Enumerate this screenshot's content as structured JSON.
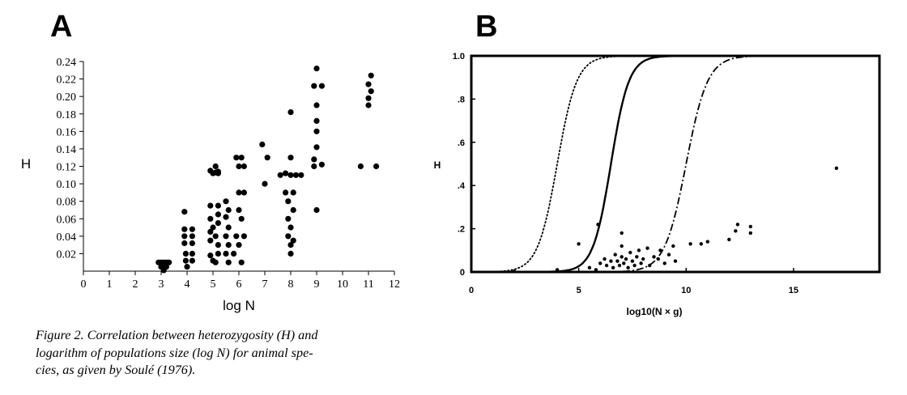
{
  "panel_labels": {
    "a": "A",
    "b": "B"
  },
  "caption": {
    "lines": [
      "Figure 2.  Correlation between heterozygosity (H) and",
      "logarithm of populations size (log N) for animal spe-",
      "cies, as given by Soulé (1976)."
    ]
  },
  "chart_data": [
    {
      "type": "scatter",
      "panel": "A",
      "title": "",
      "xlabel": "log N",
      "ylabel": "H",
      "xlim": [
        0,
        12
      ],
      "ylim": [
        0,
        0.24
      ],
      "xticks": [
        0,
        1,
        2,
        3,
        4,
        5,
        6,
        7,
        8,
        9,
        10,
        11,
        12
      ],
      "xtick_labels": [
        "0",
        "1",
        "2",
        "3",
        "4",
        "5",
        "6",
        "7",
        "8",
        "9",
        "10",
        "11",
        "12"
      ],
      "yticks": [
        0.02,
        0.04,
        0.06,
        0.08,
        0.1,
        0.12,
        0.14,
        0.16,
        0.18,
        0.2,
        0.22,
        0.24
      ],
      "ytick_labels": [
        "0.02",
        "0.04",
        "0.06",
        "0.08",
        "0.10",
        "0.12",
        "0.14",
        "0.16",
        "0.18",
        "0.20",
        "0.22",
        "0.24"
      ],
      "points": [
        [
          2.9,
          0.01
        ],
        [
          3.0,
          0.01
        ],
        [
          3.1,
          0.01
        ],
        [
          3.2,
          0.01
        ],
        [
          3.3,
          0.01
        ],
        [
          3.0,
          0.005
        ],
        [
          3.2,
          0.005
        ],
        [
          3.1,
          0.001
        ],
        [
          3.9,
          0.068
        ],
        [
          3.9,
          0.048
        ],
        [
          4.2,
          0.048
        ],
        [
          3.9,
          0.04
        ],
        [
          4.2,
          0.04
        ],
        [
          3.9,
          0.032
        ],
        [
          4.2,
          0.032
        ],
        [
          3.95,
          0.02
        ],
        [
          4.2,
          0.02
        ],
        [
          3.95,
          0.012
        ],
        [
          4.2,
          0.012
        ],
        [
          4.0,
          0.005
        ],
        [
          4.9,
          0.115
        ],
        [
          5.0,
          0.112
        ],
        [
          5.1,
          0.113
        ],
        [
          5.2,
          0.112
        ],
        [
          5.1,
          0.12
        ],
        [
          5.2,
          0.114
        ],
        [
          4.9,
          0.075
        ],
        [
          5.2,
          0.075
        ],
        [
          4.9,
          0.06
        ],
        [
          5.2,
          0.065
        ],
        [
          5.0,
          0.05
        ],
        [
          5.2,
          0.055
        ],
        [
          4.9,
          0.045
        ],
        [
          5.1,
          0.04
        ],
        [
          4.9,
          0.035
        ],
        [
          5.2,
          0.03
        ],
        [
          4.9,
          0.018
        ],
        [
          5.2,
          0.02
        ],
        [
          5.0,
          0.012
        ],
        [
          5.1,
          0.01
        ],
        [
          5.5,
          0.08
        ],
        [
          5.6,
          0.07
        ],
        [
          5.5,
          0.062
        ],
        [
          5.6,
          0.05
        ],
        [
          5.5,
          0.04
        ],
        [
          5.6,
          0.03
        ],
        [
          5.5,
          0.02
        ],
        [
          5.6,
          0.01
        ],
        [
          5.9,
          0.13
        ],
        [
          6.1,
          0.13
        ],
        [
          6.0,
          0.12
        ],
        [
          6.2,
          0.12
        ],
        [
          6.0,
          0.09
        ],
        [
          6.2,
          0.09
        ],
        [
          6.0,
          0.07
        ],
        [
          6.1,
          0.06
        ],
        [
          5.9,
          0.04
        ],
        [
          6.2,
          0.04
        ],
        [
          6.0,
          0.03
        ],
        [
          5.8,
          0.02
        ],
        [
          6.1,
          0.01
        ],
        [
          6.9,
          0.145
        ],
        [
          7.1,
          0.13
        ],
        [
          7.0,
          0.1
        ],
        [
          7.6,
          0.11
        ],
        [
          7.8,
          0.112
        ],
        [
          8.0,
          0.11
        ],
        [
          8.2,
          0.11
        ],
        [
          8.4,
          0.11
        ],
        [
          8.0,
          0.182
        ],
        [
          8.0,
          0.13
        ],
        [
          7.8,
          0.09
        ],
        [
          8.1,
          0.09
        ],
        [
          7.9,
          0.08
        ],
        [
          8.1,
          0.07
        ],
        [
          7.9,
          0.06
        ],
        [
          8.0,
          0.05
        ],
        [
          7.9,
          0.04
        ],
        [
          8.1,
          0.035
        ],
        [
          8.0,
          0.03
        ],
        [
          8.0,
          0.02
        ],
        [
          9.0,
          0.232
        ],
        [
          8.9,
          0.212
        ],
        [
          9.2,
          0.212
        ],
        [
          9.0,
          0.19
        ],
        [
          9.0,
          0.172
        ],
        [
          9.0,
          0.16
        ],
        [
          9.0,
          0.142
        ],
        [
          8.9,
          0.128
        ],
        [
          9.2,
          0.122
        ],
        [
          8.9,
          0.12
        ],
        [
          9.0,
          0.07
        ],
        [
          11.1,
          0.224
        ],
        [
          11.0,
          0.214
        ],
        [
          11.1,
          0.206
        ],
        [
          11.0,
          0.198
        ],
        [
          11.0,
          0.19
        ],
        [
          10.7,
          0.12
        ],
        [
          11.3,
          0.12
        ]
      ]
    },
    {
      "type": "line",
      "panel": "B",
      "title": "",
      "xlabel": "log10(N × g)",
      "ylabel": "H",
      "xlim": [
        0,
        19
      ],
      "ylim": [
        0,
        1.0
      ],
      "xticks": [
        0,
        5,
        10,
        15
      ],
      "xtick_labels": [
        "0",
        "5",
        "10",
        "15"
      ],
      "yticks": [
        0,
        0.2,
        0.4,
        0.6,
        0.8,
        1.0
      ],
      "ytick_labels": [
        "0",
        ".2",
        ".4",
        ".6",
        ".8",
        "1.0"
      ],
      "series": [
        {
          "name": "dotted curve",
          "style": "dotted",
          "midpoint": 4.0,
          "steepness": 2.2
        },
        {
          "name": "solid curve",
          "style": "solid",
          "midpoint": 6.5,
          "steepness": 2.4
        },
        {
          "name": "dash-dot curve",
          "style": "dashdot",
          "midpoint": 10.0,
          "steepness": 2.0
        }
      ],
      "points": [
        [
          2.0,
          0.003
        ],
        [
          4.0,
          0.01
        ],
        [
          5.0,
          0.13
        ],
        [
          5.9,
          0.22
        ],
        [
          4.5,
          0.005
        ],
        [
          5.5,
          0.02
        ],
        [
          5.8,
          0.01
        ],
        [
          6.0,
          0.04
        ],
        [
          6.2,
          0.06
        ],
        [
          6.3,
          0.03
        ],
        [
          6.5,
          0.05
        ],
        [
          6.6,
          0.02
        ],
        [
          6.7,
          0.08
        ],
        [
          6.8,
          0.05
        ],
        [
          6.9,
          0.03
        ],
        [
          7.0,
          0.12
        ],
        [
          7.0,
          0.07
        ],
        [
          7.0,
          0.18
        ],
        [
          7.1,
          0.04
        ],
        [
          7.2,
          0.06
        ],
        [
          7.3,
          0.02
        ],
        [
          7.4,
          0.09
        ],
        [
          7.5,
          0.05
        ],
        [
          7.6,
          0.03
        ],
        [
          7.7,
          0.07
        ],
        [
          7.8,
          0.1
        ],
        [
          7.9,
          0.04
        ],
        [
          8.0,
          0.06
        ],
        [
          8.2,
          0.11
        ],
        [
          8.3,
          0.03
        ],
        [
          8.5,
          0.07
        ],
        [
          8.7,
          0.06
        ],
        [
          8.8,
          0.1
        ],
        [
          9.0,
          0.04
        ],
        [
          9.2,
          0.08
        ],
        [
          9.4,
          0.12
        ],
        [
          9.5,
          0.05
        ],
        [
          10.2,
          0.13
        ],
        [
          10.7,
          0.13
        ],
        [
          11.0,
          0.14
        ],
        [
          12.0,
          0.15
        ],
        [
          12.3,
          0.19
        ],
        [
          12.4,
          0.22
        ],
        [
          13.0,
          0.18
        ],
        [
          13.0,
          0.21
        ],
        [
          17.0,
          0.48
        ]
      ]
    }
  ]
}
